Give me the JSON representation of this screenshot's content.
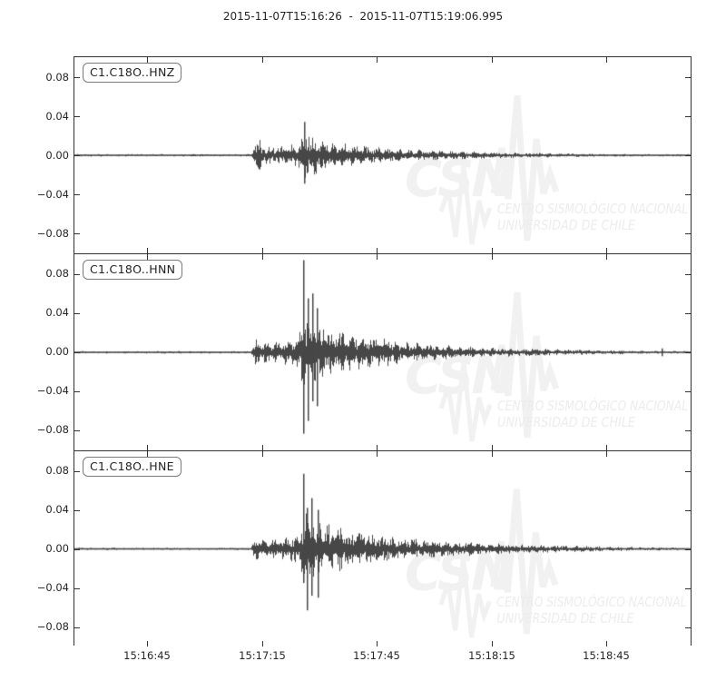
{
  "title": "2015-11-07T15:16:26  -  2015-11-07T15:19:06.995",
  "watermark": {
    "acronym": "CSN",
    "line1": "CENTRO SISMOLÓGICO NACIONAL",
    "line2": "UNIVERSIDAD DE CHILE",
    "shape_color": "#f1f1f1",
    "text_color": "#ececec"
  },
  "colors": {
    "trace": "#474747",
    "axis": "#333333",
    "tick_label": "#262626",
    "background": "#ffffff"
  },
  "chart_data": {
    "type": "line",
    "subtype": "seismogram-3-component",
    "title": "2015-11-07T15:16:26  -  2015-11-07T15:19:06.995",
    "x_start": "2015-11-07T15:16:26",
    "x_end": "2015-11-07T15:19:06.995",
    "duration_seconds": 160.995,
    "grid": false,
    "legend_position": "inset-top-left-per-panel",
    "ylim": [
      -0.1,
      0.1
    ],
    "yticks": [
      {
        "value": 0.08,
        "label": "0.08"
      },
      {
        "value": 0.04,
        "label": "0.04"
      },
      {
        "value": 0.0,
        "label": "0.00"
      },
      {
        "value": -0.04,
        "label": "−0.04"
      },
      {
        "value": -0.08,
        "label": "−0.08"
      }
    ],
    "xticks": [
      {
        "t": 19,
        "label": "15:16:45"
      },
      {
        "t": 49,
        "label": "15:17:15"
      },
      {
        "t": 79,
        "label": "15:17:45"
      },
      {
        "t": 109,
        "label": "15:18:15"
      },
      {
        "t": 139,
        "label": "15:18:45"
      }
    ],
    "envelope_time_s": [
      0,
      44,
      46,
      47,
      48,
      49,
      50,
      52,
      54,
      56,
      58,
      59,
      60,
      61,
      62,
      64,
      66,
      68,
      70,
      73,
      76,
      80,
      84,
      88,
      92,
      96,
      100,
      105,
      110,
      115,
      120,
      130,
      140,
      150,
      161
    ],
    "traces": [
      {
        "label": "C1.C18O..HNZ",
        "seed": 3,
        "envelope_amplitude": [
          0.0013,
          0.0013,
          0.0015,
          0.014,
          0.019,
          0.014,
          0.01,
          0.009,
          0.01,
          0.011,
          0.013,
          0.022,
          0.03,
          0.027,
          0.023,
          0.019,
          0.016,
          0.014,
          0.013,
          0.011,
          0.01,
          0.008,
          0.007,
          0.006,
          0.0055,
          0.005,
          0.0045,
          0.004,
          0.0035,
          0.003,
          0.0027,
          0.002,
          0.0016,
          0.0013,
          0.0013
        ],
        "spikes": [
          {
            "t": 59.9,
            "up": 0.034,
            "down": 0.029
          }
        ]
      },
      {
        "label": "C1.C18O..HNN",
        "seed": 7,
        "envelope_amplitude": [
          0.0013,
          0.0013,
          0.0015,
          0.015,
          0.017,
          0.013,
          0.011,
          0.011,
          0.012,
          0.014,
          0.018,
          0.028,
          0.044,
          0.04,
          0.036,
          0.031,
          0.028,
          0.026,
          0.024,
          0.021,
          0.018,
          0.015,
          0.013,
          0.011,
          0.009,
          0.008,
          0.007,
          0.006,
          0.005,
          0.0045,
          0.004,
          0.003,
          0.0022,
          0.0016,
          0.0014
        ],
        "spikes": [
          {
            "t": 59.8,
            "up": 0.094,
            "down": 0.083
          },
          {
            "t": 61.0,
            "up": 0.055,
            "down": 0.07
          },
          {
            "t": 62.2,
            "up": 0.06,
            "down": 0.05
          },
          {
            "t": 63.4,
            "up": 0.045,
            "down": 0.055
          },
          {
            "t": 153.3,
            "up": 0.004,
            "down": 0.004
          }
        ]
      },
      {
        "label": "C1.C18O..HNE",
        "seed": 11,
        "envelope_amplitude": [
          0.0013,
          0.0013,
          0.0015,
          0.012,
          0.014,
          0.01,
          0.009,
          0.01,
          0.011,
          0.013,
          0.016,
          0.026,
          0.04,
          0.037,
          0.034,
          0.03,
          0.027,
          0.025,
          0.022,
          0.019,
          0.017,
          0.014,
          0.012,
          0.011,
          0.01,
          0.009,
          0.008,
          0.007,
          0.006,
          0.005,
          0.0045,
          0.0035,
          0.0025,
          0.0018,
          0.0015
        ],
        "spikes": [
          {
            "t": 59.7,
            "up": 0.077,
            "down": 0.035
          },
          {
            "t": 60.8,
            "up": 0.042,
            "down": 0.063
          },
          {
            "t": 62.0,
            "up": 0.052,
            "down": 0.048
          },
          {
            "t": 63.5,
            "up": 0.04,
            "down": 0.05
          }
        ]
      }
    ]
  }
}
